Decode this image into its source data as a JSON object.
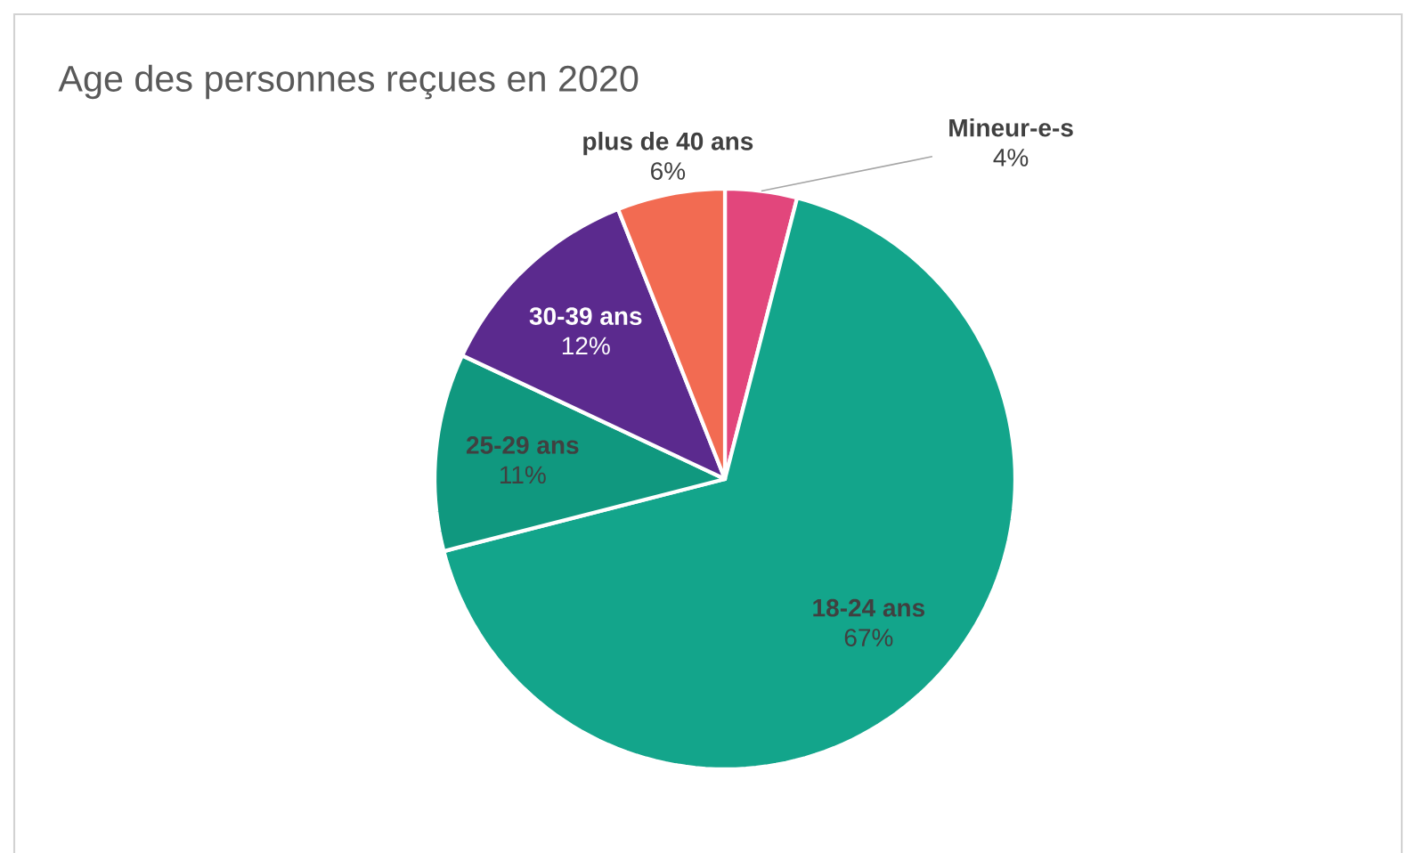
{
  "chart_data": {
    "type": "pie",
    "title": "Age des personnes reçues en 2020",
    "categories": [
      "Mineur-e-s",
      "18-24 ans",
      "25-29 ans",
      "30-39 ans",
      "plus de 40 ans"
    ],
    "values": [
      4,
      67,
      11,
      12,
      6
    ],
    "value_labels": [
      "4%",
      "67%",
      "11%",
      "12%",
      "6%"
    ],
    "colors": [
      "#e2467c",
      "#13a58b",
      "#10987f",
      "#5b2a8e",
      "#f26b52"
    ]
  }
}
